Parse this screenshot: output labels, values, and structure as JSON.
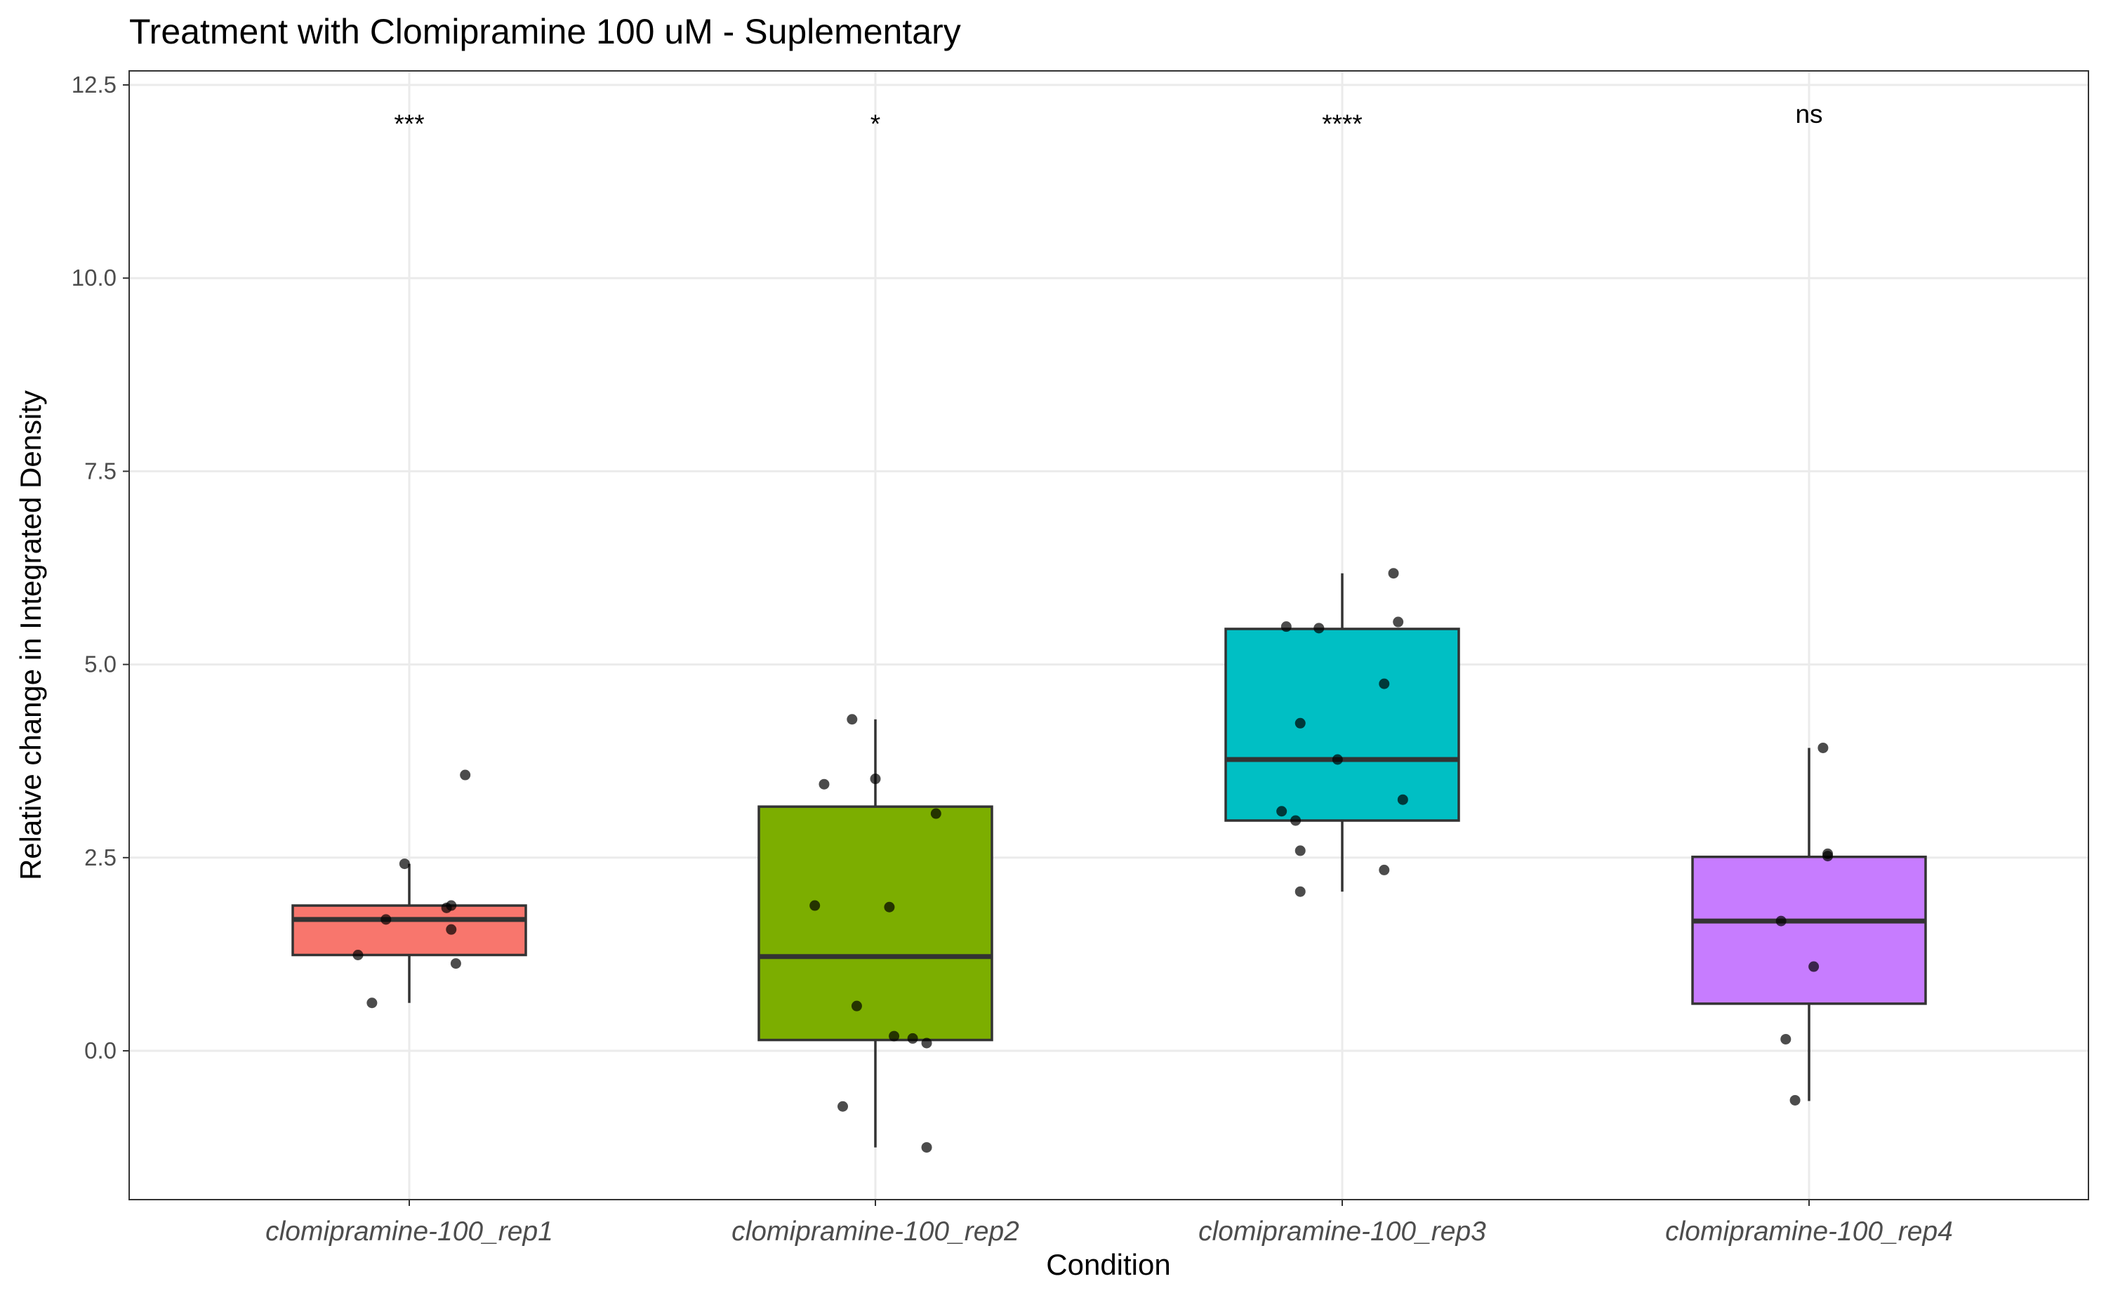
{
  "chart_data": {
    "type": "box",
    "title": "Treatment with Clomipramine 100 uM - Suplementary",
    "xlabel": "Condition",
    "ylabel": "Relative change in Integrated Density",
    "ylim": [
      -1.5,
      12.7
    ],
    "yticks": [
      0.0,
      2.5,
      5.0,
      7.5,
      10.0,
      12.5
    ],
    "ytick_labels": [
      "0.0",
      "2.5",
      "5.0",
      "7.5",
      "10.0",
      "12.5"
    ],
    "grid": true,
    "legend": "none",
    "categories": [
      "clomipramine-100_rep1",
      "clomipramine-100_rep2",
      "clomipramine-100_rep3",
      "clomipramine-100_rep4"
    ],
    "groups": [
      {
        "category": "clomipramine-100_rep1",
        "color": "#F8766D",
        "significance": "***",
        "box": {
          "whisker_low": 0.62,
          "q1": 1.24,
          "median": 1.7,
          "q3": 1.88,
          "whisker_high": 2.42
        },
        "points": [
          {
            "x_offset": -0.08,
            "y": 0.62
          },
          {
            "x_offset": -0.11,
            "y": 1.24
          },
          {
            "x_offset": -0.05,
            "y": 1.7
          },
          {
            "x_offset": 0.08,
            "y": 1.85
          },
          {
            "x_offset": 0.09,
            "y": 1.88
          },
          {
            "x_offset": 0.09,
            "y": 1.57
          },
          {
            "x_offset": 0.1,
            "y": 1.13
          },
          {
            "x_offset": -0.01,
            "y": 2.42
          },
          {
            "x_offset": 0.12,
            "y": 3.57
          }
        ]
      },
      {
        "category": "clomipramine-100_rep2",
        "color": "#7CAE00",
        "significance": "*",
        "box": {
          "whisker_low": -1.25,
          "q1": 0.14,
          "median": 1.22,
          "q3": 3.16,
          "whisker_high": 4.29
        },
        "points": [
          {
            "x_offset": -0.05,
            "y": 4.29
          },
          {
            "x_offset": -0.11,
            "y": 3.45
          },
          {
            "x_offset": 0.0,
            "y": 3.52
          },
          {
            "x_offset": 0.13,
            "y": 3.07
          },
          {
            "x_offset": -0.13,
            "y": 1.88
          },
          {
            "x_offset": 0.03,
            "y": 1.86
          },
          {
            "x_offset": -0.04,
            "y": 0.58
          },
          {
            "x_offset": 0.04,
            "y": 0.19
          },
          {
            "x_offset": 0.08,
            "y": 0.16
          },
          {
            "x_offset": 0.11,
            "y": 0.1
          },
          {
            "x_offset": -0.07,
            "y": -0.72
          },
          {
            "x_offset": 0.11,
            "y": -1.25
          }
        ]
      },
      {
        "category": "clomipramine-100_rep3",
        "color": "#00BFC4",
        "significance": "****",
        "box": {
          "whisker_low": 2.06,
          "q1": 2.98,
          "median": 3.77,
          "q3": 5.46,
          "whisker_high": 6.18
        },
        "points": [
          {
            "x_offset": 0.11,
            "y": 6.18
          },
          {
            "x_offset": -0.12,
            "y": 5.49
          },
          {
            "x_offset": -0.05,
            "y": 5.47
          },
          {
            "x_offset": 0.12,
            "y": 5.55
          },
          {
            "x_offset": 0.09,
            "y": 4.75
          },
          {
            "x_offset": -0.09,
            "y": 4.24
          },
          {
            "x_offset": -0.01,
            "y": 3.77
          },
          {
            "x_offset": 0.13,
            "y": 3.25
          },
          {
            "x_offset": -0.13,
            "y": 3.1
          },
          {
            "x_offset": -0.1,
            "y": 2.98
          },
          {
            "x_offset": -0.09,
            "y": 2.59
          },
          {
            "x_offset": 0.09,
            "y": 2.34
          },
          {
            "x_offset": -0.09,
            "y": 2.06
          }
        ]
      },
      {
        "category": "clomipramine-100_rep4",
        "color": "#C77CFF",
        "significance": "ns",
        "box": {
          "whisker_low": -0.65,
          "q1": 0.61,
          "median": 1.68,
          "q3": 2.51,
          "whisker_high": 3.92
        },
        "points": [
          {
            "x_offset": 0.03,
            "y": 3.92
          },
          {
            "x_offset": 0.04,
            "y": 2.52
          },
          {
            "x_offset": 0.04,
            "y": 2.55
          },
          {
            "x_offset": -0.06,
            "y": 1.68
          },
          {
            "x_offset": 0.01,
            "y": 1.09
          },
          {
            "x_offset": -0.05,
            "y": 0.15
          },
          {
            "x_offset": -0.03,
            "y": -0.64
          }
        ]
      }
    ]
  }
}
